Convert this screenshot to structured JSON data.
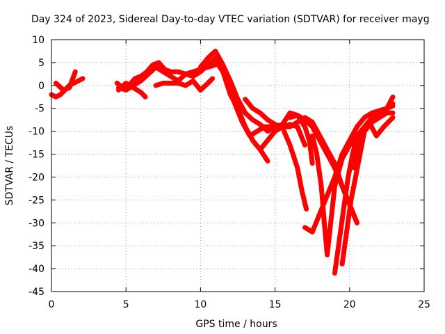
{
  "chart_data": {
    "type": "line",
    "title": "Day 324 of 2023, Sidereal Day-to-day VTEC variation (SDTVAR) for receiver mayg",
    "xlabel": "GPS time / hours",
    "ylabel": "SDTVAR / TECUs",
    "xlim": [
      0,
      25
    ],
    "ylim": [
      -45,
      10
    ],
    "xticks": [
      0,
      5,
      10,
      15,
      20,
      25
    ],
    "yticks": [
      10,
      5,
      0,
      -5,
      -10,
      -15,
      -20,
      -25,
      -30,
      -35,
      -40,
      -45
    ],
    "grid": true,
    "marker": "+",
    "color": "#ff0000",
    "series": [
      {
        "x": [
          0,
          0.3,
          0.6,
          0.9,
          1.2,
          1.5,
          1.8,
          2.1
        ],
        "y": [
          -2,
          -2.5,
          -2,
          -1,
          0,
          0.5,
          1,
          1.5
        ]
      },
      {
        "x": [
          0.3,
          0.8,
          1.2,
          1.6
        ],
        "y": [
          0.5,
          -1,
          -0.5,
          3
        ]
      },
      {
        "x": [
          4.4,
          4.8,
          5.2,
          5.6,
          6.0,
          6.4,
          6.8,
          7.2,
          7.6,
          8.0,
          8.5,
          9.0,
          9.5,
          10.0,
          10.5,
          11.0
        ],
        "y": [
          0.5,
          -0.5,
          0,
          1.5,
          2,
          3,
          4.5,
          5,
          3.5,
          3,
          3,
          2.5,
          3,
          3.5,
          4,
          4.5
        ]
      },
      {
        "x": [
          4.5,
          5.0,
          5.5,
          6.0,
          6.5,
          7.0,
          7.5,
          8.0,
          8.5,
          9.0,
          9.5,
          10.0,
          10.5,
          11.0
        ],
        "y": [
          -0.5,
          -1,
          0,
          1,
          2.5,
          4,
          3,
          2,
          1,
          2.5,
          2,
          3,
          4.5,
          6
        ]
      },
      {
        "x": [
          4.5,
          5.0,
          5.5,
          6.0,
          6.3
        ],
        "y": [
          -1,
          0.5,
          -0.5,
          -1.5,
          -2.5
        ]
      },
      {
        "x": [
          7.0,
          7.5,
          8.0,
          8.5,
          9.0,
          9.5,
          10.0,
          10.5,
          10.8
        ],
        "y": [
          0,
          0.5,
          0.5,
          0.5,
          0,
          1,
          -1,
          0.5,
          1.5
        ]
      },
      {
        "x": [
          10.0,
          10.5,
          11.0,
          11.5,
          12.0,
          12.5,
          13.0,
          13.5,
          14.0,
          14.5,
          15.0,
          15.5,
          16.0,
          16.5,
          17.0,
          17.3,
          17.5
        ],
        "y": [
          4,
          6,
          7.5,
          4.5,
          1,
          -3,
          -6,
          -7.5,
          -8.5,
          -10,
          -9,
          -8.5,
          -6,
          -6.5,
          -9,
          -12,
          -17
        ]
      },
      {
        "x": [
          11.0,
          11.5,
          12.0,
          12.5,
          13.0,
          13.5,
          14.0,
          14.5
        ],
        "y": [
          5.5,
          3,
          -2,
          -5,
          -9,
          -12,
          -14,
          -16.5
        ]
      },
      {
        "x": [
          11.2,
          11.8,
          12.3,
          12.8,
          13.3,
          13.8,
          14.3,
          14.8
        ],
        "y": [
          5,
          1,
          -4,
          -8,
          -11,
          -10,
          -9,
          -9
        ]
      },
      {
        "x": [
          13.0,
          13.5,
          14.0,
          14.5,
          15.0,
          15.5,
          16.0,
          16.5,
          17.0,
          17.5,
          18.0,
          18.5,
          19.0,
          19.5,
          20.0,
          20.5
        ],
        "y": [
          -3,
          -5,
          -6,
          -7.5,
          -8.5,
          -9,
          -9,
          -8,
          -7,
          -8,
          -11,
          -14,
          -17,
          -22,
          -26,
          -30
        ]
      },
      {
        "x": [
          14.0,
          14.5,
          15.0,
          15.5,
          16.0,
          16.5,
          17.0
        ],
        "y": [
          -14,
          -12,
          -10,
          -9,
          -8.5,
          -9,
          -13
        ]
      },
      {
        "x": [
          16.0,
          16.5,
          17.0,
          17.5,
          18.0,
          18.5,
          19.0,
          19.5,
          20.0,
          20.5
        ],
        "y": [
          -7,
          -6.5,
          -7.5,
          -9,
          -12,
          -15,
          -18,
          -22,
          -26,
          -30
        ]
      },
      {
        "x": [
          15.6,
          16.0,
          16.5,
          16.8,
          17.1
        ],
        "y": [
          -10,
          -13,
          -18,
          -23,
          -27
        ]
      },
      {
        "x": [
          17.0,
          17.5,
          18.0,
          18.5,
          19.0,
          19.5,
          20.0,
          20.5,
          21.0,
          21.5,
          22.0,
          22.5,
          22.9
        ],
        "y": [
          -31,
          -32,
          -28,
          -24,
          -20,
          -15,
          -12,
          -9,
          -7,
          -6,
          -5.5,
          -5,
          -4
        ]
      },
      {
        "x": [
          17.5,
          17.8,
          18.1,
          18.3,
          18.5,
          19.0,
          19.5,
          20.0,
          20.5,
          21.0,
          21.5,
          22.0,
          22.5,
          22.9
        ],
        "y": [
          -11,
          -15,
          -22,
          -30,
          -37,
          -22,
          -16,
          -13,
          -11,
          -9,
          -7,
          -6,
          -5,
          -4.5
        ]
      },
      {
        "x": [
          19.0,
          19.3,
          19.6,
          19.9,
          20.2,
          20.5,
          21.0,
          21.5,
          22.0,
          22.5,
          22.9
        ],
        "y": [
          -41,
          -34,
          -27,
          -20,
          -15,
          -11,
          -10,
          -8,
          -7,
          -6,
          -6
        ]
      },
      {
        "x": [
          19.5,
          19.8,
          20.1,
          20.4,
          20.7,
          21.0,
          21.5,
          22.0,
          22.5,
          22.9
        ],
        "y": [
          -39,
          -32,
          -25,
          -20,
          -15,
          -10,
          -7,
          -6,
          -5,
          -2.5
        ]
      },
      {
        "x": [
          20.3,
          20.8,
          21.3,
          21.8,
          22.3,
          22.9
        ],
        "y": [
          -18,
          -11,
          -8,
          -11,
          -9,
          -7
        ]
      }
    ]
  }
}
